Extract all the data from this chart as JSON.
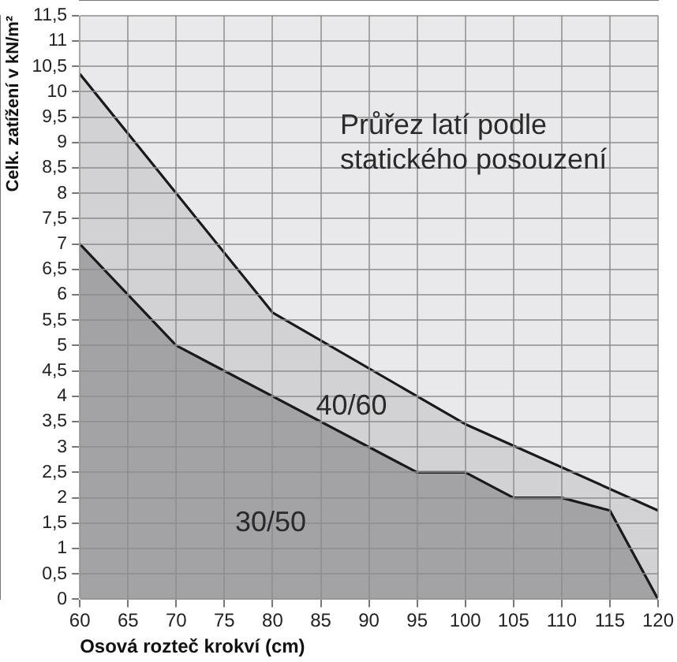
{
  "chart_data": {
    "type": "area",
    "xlabel": "Osová rozteč krokví (cm)",
    "ylabel": "Celk. zatížení v kN/m²",
    "annotations": [
      "Průřez latí podle statického posouzení"
    ],
    "series": [
      {
        "name": "40/60",
        "color": "#d2d2d4",
        "x": [
          60,
          80,
          100,
          120
        ],
        "values": [
          10.35,
          5.65,
          3.45,
          1.75
        ]
      },
      {
        "name": "30/50",
        "color": "#a3a3a6",
        "x": [
          60,
          70,
          95,
          100,
          105,
          110,
          115,
          120
        ],
        "values": [
          7,
          5,
          2.5,
          2.5,
          2,
          2,
          1.75,
          0
        ]
      }
    ],
    "xlim": [
      60,
      120
    ],
    "xticks": [
      60,
      65,
      70,
      75,
      80,
      85,
      90,
      95,
      100,
      105,
      110,
      115,
      120
    ],
    "ylim": [
      0,
      11.5
    ],
    "yticks": [
      0,
      {
        "value": 0.5,
        "label": "0,5"
      },
      1,
      {
        "value": 1.5,
        "label": "1,5"
      },
      2,
      {
        "value": 2.5,
        "label": "2,5"
      },
      3,
      {
        "value": 3.5,
        "label": "3,5"
      },
      4,
      {
        "value": 4.5,
        "label": "4,5"
      },
      5,
      {
        "value": 5.5,
        "label": "5,5"
      },
      6,
      {
        "value": 6.5,
        "label": "6,5"
      },
      7,
      {
        "value": 7.5,
        "label": "7,5"
      },
      8,
      {
        "value": 8.5,
        "label": "8,5"
      },
      9,
      {
        "value": 9.5,
        "label": "9,5"
      },
      10,
      {
        "value": 10.5,
        "label": "10,5"
      },
      11,
      {
        "value": 11.5,
        "label": "11,5"
      }
    ],
    "grid": true,
    "legend": false,
    "marker": "none",
    "line_style": "solid"
  }
}
